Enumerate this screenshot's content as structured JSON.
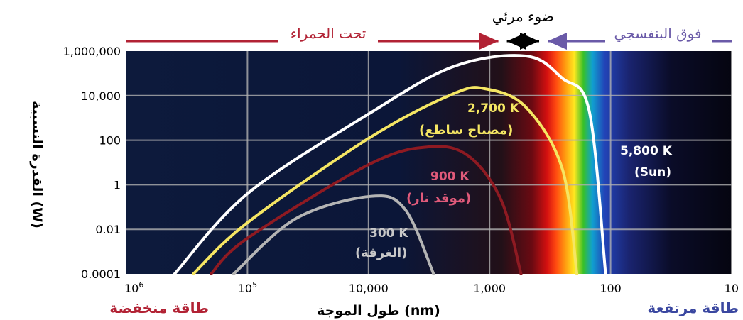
{
  "chart_data": {
    "type": "line",
    "title": "",
    "xlabel": "طول الموجة (nm)",
    "ylabel": "القدرة النسبية (W)",
    "x_scale": "log-reversed",
    "y_scale": "log",
    "xlim": [
      1000000,
      10
    ],
    "ylim": [
      0.0001,
      1000000
    ],
    "x_ticks": [
      {
        "value": 1000000,
        "label": "10",
        "sup": "6"
      },
      {
        "value": 100000,
        "label": "10",
        "sup": "5"
      },
      {
        "value": 10000,
        "label": "10,000",
        "sup": ""
      },
      {
        "value": 1000,
        "label": "1,000",
        "sup": ""
      },
      {
        "value": 100,
        "label": "100",
        "sup": ""
      },
      {
        "value": 10,
        "label": "10",
        "sup": ""
      }
    ],
    "y_ticks": [
      {
        "value": 1000000,
        "label": "1,000,000"
      },
      {
        "value": 10000,
        "label": "10,000"
      },
      {
        "value": 100,
        "label": "100"
      },
      {
        "value": 1,
        "label": "1"
      },
      {
        "value": 0.01,
        "label": "0.01"
      },
      {
        "value": 0.0001,
        "label": "0.0001"
      }
    ],
    "grid": true,
    "bands": [
      {
        "label": "تحت الحمراء",
        "color": "#b22234"
      },
      {
        "label": "ضوء مرئي",
        "color": "#000000"
      },
      {
        "label": "فوق البنفسجي",
        "color": "#6a5aa8"
      }
    ],
    "visible_band_nm": [
      700,
      400
    ],
    "series": [
      {
        "temperature": "5,800 K",
        "name": "(Sun)",
        "color": "#ffffff",
        "peak_nm": 500,
        "peak_w": 600000,
        "points": [
          [
            400000,
            0.0001
          ],
          [
            100000,
            0.4
          ],
          [
            10000,
            1500
          ],
          [
            2000,
            200000
          ],
          [
            500,
            600000
          ],
          [
            250,
            60000
          ],
          [
            150,
            2000
          ],
          [
            110,
            0.0001
          ]
        ]
      },
      {
        "temperature": "2,700 K",
        "name": "(مصباح ساطع)",
        "color": "#f5e663",
        "peak_nm": 1070,
        "peak_w": 20000,
        "points": [
          [
            280000,
            0.0001
          ],
          [
            100000,
            0.02
          ],
          [
            10000,
            120
          ],
          [
            2000,
            12000
          ],
          [
            1070,
            20000
          ],
          [
            500,
            3000
          ],
          [
            250,
            5
          ],
          [
            190,
            0.0001
          ]
        ]
      },
      {
        "temperature": "900 K",
        "name": "(موقد نار)",
        "color": "#8e1a22",
        "peak_nm": 3200,
        "peak_w": 50,
        "points": [
          [
            200000,
            0.0001
          ],
          [
            100000,
            0.004
          ],
          [
            10000,
            8
          ],
          [
            3200,
            50
          ],
          [
            1500,
            20
          ],
          [
            800,
            0.2
          ],
          [
            550,
            0.0001
          ]
        ]
      },
      {
        "temperature": "300 K",
        "name": "(الغرفة)",
        "color": "#b4b4b4",
        "peak_nm": 9700,
        "peak_w": 0.3,
        "points": [
          [
            130000,
            0.0001
          ],
          [
            40000,
            0.03
          ],
          [
            9700,
            0.3
          ],
          [
            5000,
            0.08
          ],
          [
            2900,
            0.0001
          ]
        ]
      }
    ],
    "annotations": {
      "low_energy": "طاقة منخفضة",
      "high_energy": "طاقة مرتفعة"
    }
  }
}
